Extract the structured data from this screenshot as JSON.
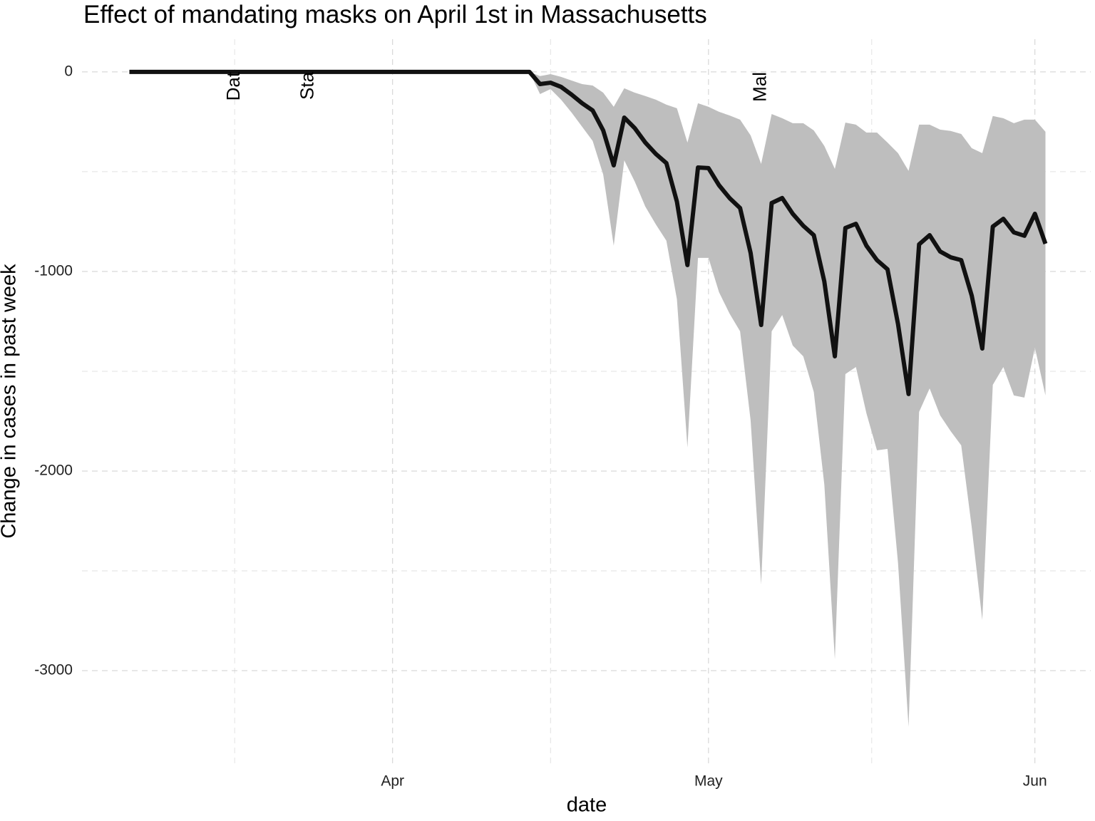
{
  "chart_data": {
    "type": "line",
    "title": "Effect of mandating masks on April 1st in Massachusetts",
    "x_label": "date",
    "y_label": "Change in cases in past week",
    "x": [
      0,
      1,
      2,
      3,
      4,
      5,
      6,
      7,
      8,
      9,
      10,
      11,
      12,
      13,
      14,
      15,
      16,
      17,
      18,
      19,
      20,
      21,
      22,
      23,
      24,
      25,
      26,
      27,
      28,
      29,
      30,
      31,
      32,
      33,
      34,
      35,
      36,
      37,
      38,
      39,
      40,
      41,
      42,
      43,
      44,
      45,
      46,
      47,
      48,
      49,
      50,
      51,
      52,
      53,
      54,
      55,
      56,
      57,
      58,
      59,
      60,
      61,
      62,
      63,
      64,
      65,
      66,
      67,
      68,
      69,
      70,
      71,
      72,
      73,
      74,
      75,
      76,
      77,
      78,
      79,
      80,
      81,
      82,
      83,
      84,
      85,
      86,
      87
    ],
    "series": [
      {
        "color": "#111111",
        "values": [
          0,
          0,
          0,
          0,
          0,
          0,
          0,
          0,
          0,
          0,
          0,
          0,
          0,
          0,
          0,
          0,
          0,
          0,
          0,
          0,
          0,
          0,
          0,
          0,
          0,
          0,
          0,
          0,
          0,
          0,
          0,
          0,
          0,
          0,
          0,
          0,
          0,
          0,
          0,
          -61,
          -54,
          -75,
          -114,
          -157,
          -193,
          -293,
          -468,
          -229,
          -282,
          -354,
          -411,
          -457,
          -650,
          -968,
          -479,
          -482,
          -568,
          -632,
          -682,
          -907,
          -1268,
          -657,
          -632,
          -711,
          -771,
          -818,
          -1050,
          -1425,
          -782,
          -761,
          -871,
          -943,
          -989,
          -1264,
          -1614,
          -864,
          -818,
          -900,
          -929,
          -943,
          -1121,
          -1386,
          -775,
          -736,
          -804,
          -821,
          -711,
          -861
        ]
      }
    ],
    "band": {
      "color": "#bebebe",
      "upper": [
        null,
        null,
        null,
        null,
        null,
        null,
        null,
        null,
        null,
        null,
        null,
        null,
        null,
        null,
        null,
        null,
        null,
        null,
        null,
        null,
        null,
        null,
        null,
        null,
        null,
        null,
        null,
        null,
        null,
        null,
        null,
        null,
        null,
        null,
        null,
        null,
        null,
        null,
        0,
        -21,
        -11,
        -25,
        -43,
        -61,
        -68,
        -104,
        -175,
        -82,
        -104,
        -121,
        -139,
        -164,
        -182,
        -354,
        -157,
        -175,
        -200,
        -218,
        -239,
        -318,
        -461,
        -211,
        -232,
        -257,
        -257,
        -293,
        -371,
        -486,
        -254,
        -264,
        -304,
        -304,
        -354,
        -407,
        -496,
        -264,
        -264,
        -289,
        -296,
        -311,
        -382,
        -407,
        -221,
        -232,
        -257,
        -239,
        -239,
        -300
      ],
      "lower": [
        null,
        null,
        null,
        null,
        null,
        null,
        null,
        null,
        null,
        null,
        null,
        null,
        null,
        null,
        null,
        null,
        null,
        null,
        null,
        null,
        null,
        null,
        null,
        null,
        null,
        null,
        null,
        null,
        null,
        null,
        null,
        null,
        null,
        null,
        null,
        null,
        null,
        null,
        0,
        -111,
        -86,
        -139,
        -204,
        -275,
        -346,
        -514,
        -871,
        -443,
        -550,
        -675,
        -764,
        -846,
        -1139,
        -1882,
        -932,
        -932,
        -1104,
        -1211,
        -1300,
        -1746,
        -2568,
        -1300,
        -1218,
        -1371,
        -1425,
        -1604,
        -2068,
        -2943,
        -1514,
        -1479,
        -1711,
        -1896,
        -1889,
        -2461,
        -3282,
        -1704,
        -1586,
        -1721,
        -1800,
        -1871,
        -2282,
        -2746,
        -1568,
        -1479,
        -1621,
        -1632,
        -1382,
        -1621
      ]
    },
    "annotations": [
      {
        "x": 10,
        "label": "Dat"
      },
      {
        "x": 17,
        "label": "Sta"
      },
      {
        "x": 60,
        "label": "Mal"
      }
    ],
    "xlim": [
      -4.5,
      91.3
    ],
    "xticks": [
      {
        "value": 25,
        "label": "Apr"
      },
      {
        "value": 55,
        "label": "May"
      },
      {
        "value": 86,
        "label": "Jun"
      }
    ],
    "minor_xticks": [
      10,
      40,
      70.5
    ],
    "ylim": [
      -3468,
      164
    ],
    "yticks": [
      0,
      -1000,
      -2000,
      -3000
    ],
    "minor_yticks": [
      -500,
      -1500,
      -2500
    ],
    "grid": true
  }
}
